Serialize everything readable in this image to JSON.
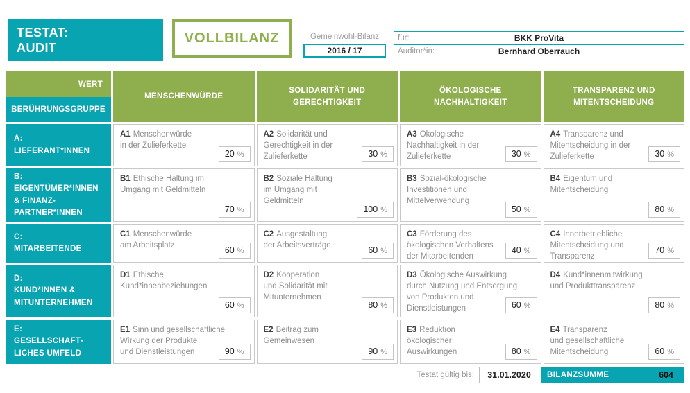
{
  "colors": {
    "teal": "#09A4B2",
    "green": "#8FAF4E"
  },
  "unit": "%",
  "header": {
    "testat": "TESTAT:\nAUDIT",
    "balance_type": "VOLLBILANZ",
    "period_label": "Gemeinwohl-Bilanz",
    "period_value": "2016 / 17",
    "for_label": "für:",
    "for_value": "BKK ProVita",
    "auditor_label": "Auditor*in:",
    "auditor_value": "Bernhard Oberrauch"
  },
  "matrix": {
    "corner_top": "WERT",
    "corner_bottom": "BERÜHRUNGSGRUPPE",
    "columns": [
      "MENSCHENWÜRDE",
      "SOLIDARITÄT UND\nGERECHTIGKEIT",
      "ÖKOLOGISCHE\nNACHHALTIGKEIT",
      "TRANSPARENZ UND\nMITENTSCHEIDUNG"
    ],
    "rows": [
      {
        "group": "A:\nLIEFERANT*INNEN",
        "cells": [
          {
            "code": "A1",
            "title": "Menschenwürde\nin der Zulieferkette",
            "value": "20"
          },
          {
            "code": "A2",
            "title": "Solidarität und\nGerechtigkeit in der\nZulieferkette",
            "value": "30"
          },
          {
            "code": "A3",
            "title": "Ökologische\nNachhaltigkeit in der\nZulieferkette",
            "value": "30"
          },
          {
            "code": "A4",
            "title": "Transparenz und\nMitentscheidung in der\nZulieferkette",
            "value": "30"
          }
        ]
      },
      {
        "group": "B:\nEIGENTÜMER*INNEN\n& FINANZ-\nPARTNER*INNEN",
        "cells": [
          {
            "code": "B1",
            "title": "Ethische Haltung im\nUmgang mit Geldmitteln",
            "value": "70"
          },
          {
            "code": "B2",
            "title": "Soziale Haltung\nim Umgang mit\nGeldmitteln",
            "value": "100"
          },
          {
            "code": "B3",
            "title": "Sozial-ökologische\nInvestitionen und\nMittelverwendung",
            "value": "50"
          },
          {
            "code": "B4",
            "title": "Eigentum und\nMitentscheidung",
            "value": "80"
          }
        ]
      },
      {
        "group": "C:\nMITARBEITENDE",
        "cells": [
          {
            "code": "C1",
            "title": "Menschenwürde\nam Arbeitsplatz",
            "value": "60"
          },
          {
            "code": "C2",
            "title": "Ausgestaltung\nder Arbeitsverträge",
            "value": "60"
          },
          {
            "code": "C3",
            "title": "Förderung des\nökologischen Verhaltens\nder Mitarbeitenden",
            "value": "40"
          },
          {
            "code": "C4",
            "title": "Innerbetriebliche\nMitentscheidung und\nTransparenz",
            "value": "70"
          }
        ]
      },
      {
        "group": "D:\nKUND*INNEN &\nMITUNTERNEHMEN",
        "cells": [
          {
            "code": "D1",
            "title": "Ethische\nKund*innenbeziehungen",
            "value": "60"
          },
          {
            "code": "D2",
            "title": "Kooperation\nund Solidarität mit\nMitunternehmen",
            "value": "80"
          },
          {
            "code": "D3",
            "title": "Ökologische Auswirkung\ndurch Nutzung und Entsorgung\nvon Produkten und\nDienstleistungen",
            "value": "60"
          },
          {
            "code": "D4",
            "title": "Kund*innenmitwirkung\nund Produkttransparenz",
            "value": "80"
          }
        ]
      },
      {
        "group": "E:\nGESELLSCHAFT-\nLICHES UMFELD",
        "cells": [
          {
            "code": "E1",
            "title": "Sinn und gesellschaftliche\nWirkung der Produkte\nund Dienstleistungen",
            "value": "90"
          },
          {
            "code": "E2",
            "title": "Beitrag zum\nGemeinwesen",
            "value": "90"
          },
          {
            "code": "E3",
            "title": "Reduktion\nökologischer\nAuswirkungen",
            "value": "80"
          },
          {
            "code": "E4",
            "title": "Transparenz\nund gesellschaftliche\nMitentscheidung",
            "value": "60"
          }
        ]
      }
    ]
  },
  "footer": {
    "valid_label": "Testat gültig bis:",
    "valid_value": "31.01.2020",
    "sum_label": "BILANZSUMME",
    "sum_value": "604"
  }
}
